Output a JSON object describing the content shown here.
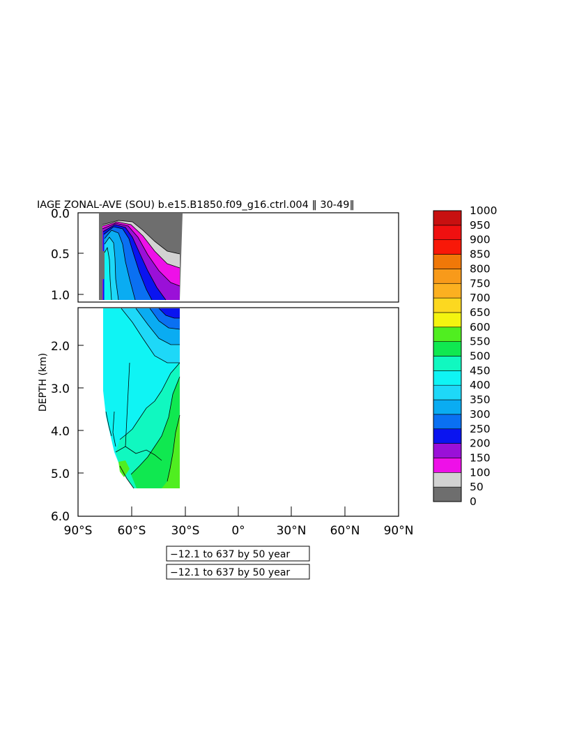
{
  "chart_data": {
    "type": "heatmap",
    "title": "IAGE ZONAL-AVE (SOU) b.e15.B1850.f09_g16.ctrl.004 ‖ 30-49‖",
    "ylabel": "DEPTH (km)",
    "xlabel": "",
    "x_ticks": [
      "90°S",
      "60°S",
      "30°S",
      "0°",
      "30°N",
      "60°N",
      "90°N"
    ],
    "x_tick_values": [
      -90,
      -60,
      -30,
      0,
      30,
      60,
      90
    ],
    "xlim": [
      -90,
      90
    ],
    "top_panel_ticks": [
      "0.0",
      "0.5",
      "1.0"
    ],
    "top_panel_tick_values": [
      0.0,
      0.5,
      1.0
    ],
    "top_panel_ylim": [
      0.0,
      1.1
    ],
    "bottom_panel_ticks": [
      "2.0",
      "3.0",
      "4.0",
      "5.0",
      "6.0"
    ],
    "bottom_panel_tick_values": [
      2.0,
      3.0,
      4.0,
      5.0,
      6.0
    ],
    "bottom_panel_ylim": [
      1.0,
      6.0
    ],
    "colorbar": {
      "levels": [
        0,
        50,
        100,
        150,
        200,
        250,
        300,
        350,
        400,
        450,
        500,
        550,
        600,
        650,
        700,
        750,
        800,
        850,
        900,
        950,
        1000
      ],
      "labels": [
        "0",
        "50",
        "100",
        "150",
        "200",
        "250",
        "300",
        "350",
        "400",
        "450",
        "500",
        "550",
        "600",
        "650",
        "700",
        "750",
        "800",
        "850",
        "900",
        "950",
        "1000"
      ],
      "colors": [
        "#6e6e6e",
        "#d2d2d2",
        "#ee10e8",
        "#9a10d8",
        "#0a14f0",
        "#0a70f2",
        "#0aacf2",
        "#1ed8f8",
        "#0ff4f4",
        "#10f8c0",
        "#10e850",
        "#50ee20",
        "#f4f410",
        "#fcd820",
        "#fcb020",
        "#f89a1a",
        "#f07808",
        "#f81808",
        "#f01010",
        "#c81010"
      ]
    },
    "info_boxes": [
      "−12.1 to 637 by 50 year",
      "−12.1 to 637 by 50 year"
    ]
  }
}
